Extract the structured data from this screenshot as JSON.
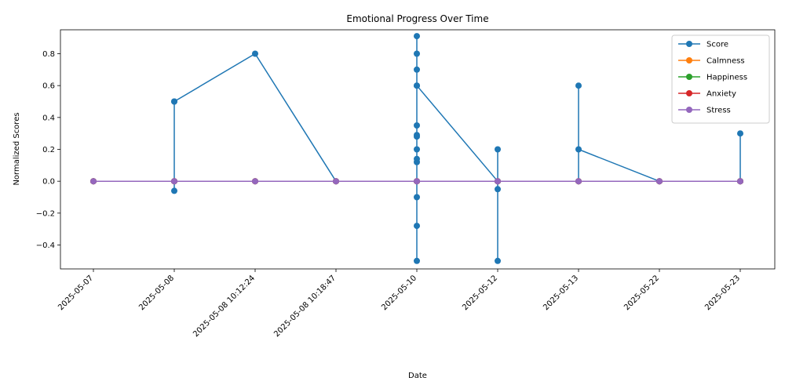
{
  "chart_data": {
    "type": "line",
    "title": "Emotional Progress Over Time",
    "xlabel": "Date",
    "ylabel": "Normalized Scores",
    "categories": [
      "2025-05-07",
      "2025-05-08",
      "2025-05-08 10:12:24",
      "2025-05-08 10:18:47",
      "2025-05-10",
      "2025-05-12",
      "2025-05-13",
      "2025-05-22",
      "2025-05-23"
    ],
    "ylim": [
      -0.55,
      0.95
    ],
    "yticks": [
      -0.4,
      -0.2,
      0.0,
      0.2,
      0.4,
      0.6,
      0.8
    ],
    "ytick_labels": [
      "−0.4",
      "−0.2",
      "0.0",
      "0.2",
      "0.4",
      "0.6",
      "0.8"
    ],
    "grid": false,
    "legend_position": "top-right",
    "series": [
      {
        "name": "Score",
        "color": "#1f77b4",
        "points": [
          [
            0,
            0.0
          ],
          [
            1,
            0.0
          ],
          [
            1,
            0.5
          ],
          [
            1,
            -0.06
          ],
          [
            1,
            0.0
          ],
          [
            1,
            0.5
          ],
          [
            2,
            0.8
          ],
          [
            3,
            0.0
          ],
          [
            4,
            0.0
          ],
          [
            4,
            0.91
          ],
          [
            4,
            0.8
          ],
          [
            4,
            0.7
          ],
          [
            4,
            0.6
          ],
          [
            4,
            0.35
          ],
          [
            4,
            0.29
          ],
          [
            4,
            0.28
          ],
          [
            4,
            0.2
          ],
          [
            4,
            0.14
          ],
          [
            4,
            0.12
          ],
          [
            4,
            -0.1
          ],
          [
            4,
            -0.28
          ],
          [
            4,
            -0.5
          ],
          [
            4,
            0.6
          ],
          [
            5,
            0.0
          ],
          [
            5,
            0.2
          ],
          [
            5,
            -0.05
          ],
          [
            5,
            -0.5
          ],
          [
            5,
            0.0
          ],
          [
            6,
            0.0
          ],
          [
            6,
            0.6
          ],
          [
            6,
            0.2
          ],
          [
            7,
            0.0
          ],
          [
            8,
            0.0
          ],
          [
            8,
            0.3
          ],
          [
            8,
            0.0
          ]
        ]
      },
      {
        "name": "Calmness",
        "color": "#ff7f0e",
        "points": [
          [
            0,
            0.0
          ],
          [
            1,
            0.0
          ],
          [
            2,
            0.0
          ],
          [
            3,
            0.0
          ],
          [
            4,
            0.0
          ],
          [
            5,
            0.0
          ],
          [
            6,
            0.0
          ],
          [
            7,
            0.0
          ],
          [
            8,
            0.0
          ]
        ]
      },
      {
        "name": "Happiness",
        "color": "#2ca02c",
        "points": [
          [
            0,
            0.0
          ],
          [
            1,
            0.0
          ],
          [
            2,
            0.0
          ],
          [
            3,
            0.0
          ],
          [
            4,
            0.0
          ],
          [
            5,
            0.0
          ],
          [
            6,
            0.0
          ],
          [
            7,
            0.0
          ],
          [
            8,
            0.0
          ]
        ]
      },
      {
        "name": "Anxiety",
        "color": "#d62728",
        "points": [
          [
            0,
            0.0
          ],
          [
            1,
            0.0
          ],
          [
            2,
            0.0
          ],
          [
            3,
            0.0
          ],
          [
            4,
            0.0
          ],
          [
            5,
            0.0
          ],
          [
            6,
            0.0
          ],
          [
            7,
            0.0
          ],
          [
            8,
            0.0
          ]
        ]
      },
      {
        "name": "Stress",
        "color": "#9467bd",
        "points": [
          [
            0,
            0.0
          ],
          [
            1,
            0.0
          ],
          [
            2,
            0.0
          ],
          [
            3,
            0.0
          ],
          [
            4,
            0.0
          ],
          [
            5,
            0.0
          ],
          [
            6,
            0.0
          ],
          [
            7,
            0.0
          ],
          [
            8,
            0.0
          ]
        ]
      }
    ]
  }
}
